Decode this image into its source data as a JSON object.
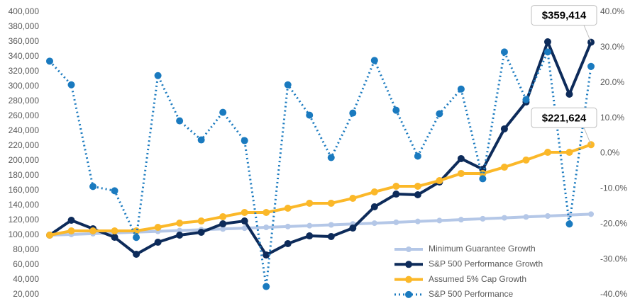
{
  "chart_data": {
    "type": "line",
    "categories": [
      null,
      null,
      null,
      null,
      null,
      null,
      null,
      null,
      null,
      null,
      null,
      null,
      null,
      null,
      null,
      null,
      null,
      null,
      null,
      null,
      null,
      null,
      null,
      null,
      null,
      null
    ],
    "ylim": [
      20000,
      400000
    ],
    "yticks": [
      {
        "value": 20000,
        "label": "20,000"
      },
      {
        "value": 40000,
        "label": "40,000"
      },
      {
        "value": 60000,
        "label": "60,000"
      },
      {
        "value": 80000,
        "label": "80,000"
      },
      {
        "value": 100000,
        "label": "100,000"
      },
      {
        "value": 120000,
        "label": "120,000"
      },
      {
        "value": 140000,
        "label": "140,000"
      },
      {
        "value": 160000,
        "label": "160,000"
      },
      {
        "value": 180000,
        "label": "180,000"
      },
      {
        "value": 200000,
        "label": "200,000"
      },
      {
        "value": 220000,
        "label": "220,000"
      },
      {
        "value": 240000,
        "label": "240,000"
      },
      {
        "value": 260000,
        "label": "260,000"
      },
      {
        "value": 280000,
        "label": "280,000"
      },
      {
        "value": 300000,
        "label": "300,000"
      },
      {
        "value": 320000,
        "label": "320,000"
      },
      {
        "value": 340000,
        "label": "340,000"
      },
      {
        "value": 360000,
        "label": "360,000"
      },
      {
        "value": 380000,
        "label": "380,000"
      },
      {
        "value": 400000,
        "label": "400,000"
      }
    ],
    "y2lim": [
      -40,
      40
    ],
    "y2ticks": [
      {
        "value": -40,
        "label": "-40.0%"
      },
      {
        "value": -30,
        "label": "-30.0%"
      },
      {
        "value": -20,
        "label": "-20.0%"
      },
      {
        "value": -10,
        "label": "-10.0%"
      },
      {
        "value": 0,
        "label": "0.0%"
      },
      {
        "value": 10,
        "label": "10.0%"
      },
      {
        "value": 20,
        "label": "20.0%"
      },
      {
        "value": 30,
        "label": "30.0%"
      },
      {
        "value": 40,
        "label": "40.0%"
      }
    ],
    "legend": "lower right",
    "series": [
      {
        "name": "Minimum Guarantee Growth",
        "color": "#b4c7e7",
        "style": "solid",
        "values": [
          100000,
          101000,
          102010,
          103030,
          104060,
          105101,
          106152,
          107214,
          108286,
          109369,
          110462,
          111567,
          112683,
          113809,
          114947,
          116097,
          117258,
          118430,
          119615,
          120811,
          122019,
          123239,
          124472,
          125716,
          126973,
          128243
        ]
      },
      {
        "name": "S&P 500 Performance Growth",
        "color": "#0d2b5a",
        "style": "solid",
        "values": [
          100000,
          120000,
          108600,
          97100,
          74300,
          90500,
          100000,
          103800,
          115200,
          119000,
          73300,
          88600,
          99000,
          98100,
          109500,
          138100,
          155200,
          154300,
          171400,
          202900,
          188600,
          242900,
          279000,
          360000,
          289500,
          359414
        ],
        "value_labels": [
          null,
          null,
          null,
          null,
          null,
          null,
          null,
          null,
          null,
          null,
          null,
          null,
          null,
          null,
          null,
          null,
          null,
          null,
          null,
          null,
          null,
          null,
          null,
          null,
          null,
          "$359,414"
        ]
      },
      {
        "name": "Assumed 5% Cap Growth",
        "color": "#fbb829",
        "style": "solid",
        "values": [
          100000,
          105700,
          105700,
          105700,
          105700,
          110500,
          116200,
          119000,
          124800,
          130500,
          130500,
          136200,
          142900,
          142900,
          149500,
          158100,
          165700,
          165700,
          173300,
          182900,
          182900,
          191400,
          201000,
          211400,
          211400,
          221624
        ],
        "value_labels": [
          null,
          null,
          null,
          null,
          null,
          null,
          null,
          null,
          null,
          null,
          null,
          null,
          null,
          null,
          null,
          null,
          null,
          null,
          null,
          null,
          null,
          null,
          null,
          null,
          null,
          "$221,624"
        ]
      },
      {
        "name": "S&P 500 Performance",
        "color": "#1a7abf",
        "style": "dotted",
        "axis": "y2",
        "values": [
          26.1,
          19.4,
          -9.4,
          -10.6,
          -23.8,
          22.0,
          9.2,
          3.8,
          11.6,
          3.6,
          -37.7,
          19.4,
          10.8,
          -1.2,
          11.4,
          26.3,
          12.2,
          -0.8,
          11.2,
          18.2,
          -7.2,
          28.7,
          15.2,
          28.7,
          -20.0,
          24.6
        ]
      }
    ]
  }
}
